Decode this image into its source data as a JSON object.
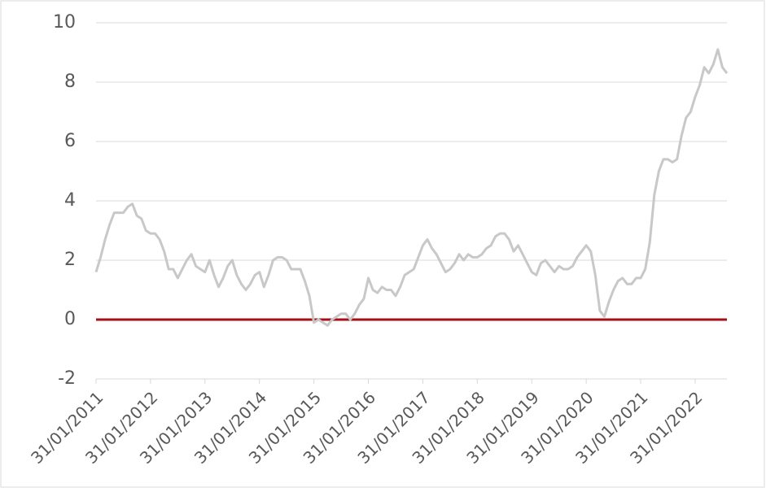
{
  "chart_data": {
    "type": "line",
    "categories": [
      "31/01/2011",
      null,
      null,
      null,
      null,
      null,
      null,
      null,
      null,
      null,
      null,
      null,
      "31/01/2012",
      null,
      null,
      null,
      null,
      null,
      null,
      null,
      null,
      null,
      null,
      null,
      "31/01/2013",
      null,
      null,
      null,
      null,
      null,
      null,
      null,
      null,
      null,
      null,
      null,
      "31/01/2014",
      null,
      null,
      null,
      null,
      null,
      null,
      null,
      null,
      null,
      null,
      null,
      "31/01/2015",
      null,
      null,
      null,
      null,
      null,
      null,
      null,
      null,
      null,
      null,
      null,
      "31/01/2016",
      null,
      null,
      null,
      null,
      null,
      null,
      null,
      null,
      null,
      null,
      null,
      "31/01/2017",
      null,
      null,
      null,
      null,
      null,
      null,
      null,
      null,
      null,
      null,
      null,
      "31/01/2018",
      null,
      null,
      null,
      null,
      null,
      null,
      null,
      null,
      null,
      null,
      null,
      "31/01/2019",
      null,
      null,
      null,
      null,
      null,
      null,
      null,
      null,
      null,
      null,
      null,
      "31/01/2020",
      null,
      null,
      null,
      null,
      null,
      null,
      null,
      null,
      null,
      null,
      null,
      "31/01/2021",
      null,
      null,
      null,
      null,
      null,
      null,
      null,
      null,
      null,
      null,
      null,
      "31/01/2022",
      null,
      null,
      null,
      null,
      null,
      null,
      null
    ],
    "values": [
      1.6,
      2.1,
      2.7,
      3.2,
      3.6,
      3.6,
      3.6,
      3.8,
      3.9,
      3.5,
      3.4,
      3.0,
      2.9,
      2.9,
      2.7,
      2.3,
      1.7,
      1.7,
      1.4,
      1.7,
      2.0,
      2.2,
      1.8,
      1.7,
      1.6,
      2.0,
      1.5,
      1.1,
      1.4,
      1.8,
      2.0,
      1.5,
      1.2,
      1.0,
      1.2,
      1.5,
      1.6,
      1.1,
      1.5,
      2.0,
      2.1,
      2.1,
      2.0,
      1.7,
      1.7,
      1.7,
      1.3,
      0.8,
      -0.1,
      0.0,
      -0.1,
      -0.2,
      0.0,
      0.1,
      0.2,
      0.2,
      0.0,
      0.2,
      0.5,
      0.7,
      1.4,
      1.0,
      0.9,
      1.1,
      1.0,
      1.0,
      0.8,
      1.1,
      1.5,
      1.6,
      1.7,
      2.1,
      2.5,
      2.7,
      2.4,
      2.2,
      1.9,
      1.6,
      1.7,
      1.9,
      2.2,
      2.0,
      2.2,
      2.1,
      2.1,
      2.2,
      2.4,
      2.5,
      2.8,
      2.9,
      2.9,
      2.7,
      2.3,
      2.5,
      2.2,
      1.9,
      1.6,
      1.5,
      1.9,
      2.0,
      1.8,
      1.6,
      1.8,
      1.7,
      1.7,
      1.8,
      2.1,
      2.3,
      2.5,
      2.3,
      1.5,
      0.3,
      0.1,
      0.6,
      1.0,
      1.3,
      1.4,
      1.2,
      1.2,
      1.4,
      1.4,
      1.7,
      2.6,
      4.2,
      5.0,
      5.4,
      5.4,
      5.3,
      5.4,
      6.2,
      6.8,
      7.0,
      7.5,
      7.9,
      8.5,
      8.3,
      8.6,
      9.1,
      8.5,
      8.3
    ],
    "color": "#c8c8c8",
    "baseline_color": "#a50f15",
    "ylim": [
      -2,
      10
    ],
    "yticks": [
      -2,
      0,
      2,
      4,
      6,
      8,
      10
    ],
    "grid": true
  }
}
